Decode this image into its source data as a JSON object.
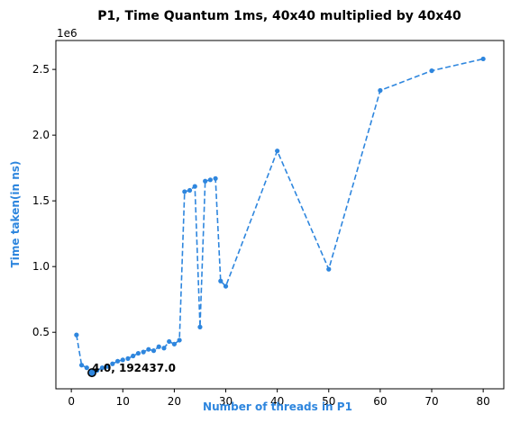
{
  "chart_data": {
    "type": "line",
    "title": "P1, Time Quantum 1ms, 40x40 multiplied by 40x40",
    "xlabel": "Number of threads in P1",
    "ylabel": "Time taken(in ns)",
    "y_offset_label": "1e6",
    "xlim": [
      -3.0,
      84.0
    ],
    "ylim": [
      0.07,
      2.72
    ],
    "x_ticks": [
      0,
      10,
      20,
      30,
      40,
      50,
      60,
      70,
      80
    ],
    "y_ticks": [
      0.5,
      1.0,
      1.5,
      2.0,
      2.5
    ],
    "x_tick_labels": [
      "0",
      "10",
      "20",
      "30",
      "40",
      "50",
      "60",
      "70",
      "80"
    ],
    "y_tick_labels": [
      "0.5",
      "1.0",
      "1.5",
      "2.0",
      "2.5"
    ],
    "grid": false,
    "line_style": "dashed",
    "colors": {
      "series": "#2e86de",
      "label": "#2e86de",
      "highlight_edge": "#000000"
    },
    "series": [
      {
        "x": [
          1,
          2,
          3,
          4,
          5,
          6,
          7,
          8,
          9,
          10,
          11,
          12,
          13,
          14,
          15,
          16,
          17,
          18,
          19,
          20,
          21,
          22,
          23,
          24,
          25,
          26,
          27,
          28,
          29,
          30,
          40,
          50,
          60,
          70,
          80
        ],
        "y": [
          0.48,
          0.25,
          0.23,
          0.192437,
          0.21,
          0.23,
          0.24,
          0.26,
          0.28,
          0.29,
          0.3,
          0.32,
          0.34,
          0.35,
          0.37,
          0.36,
          0.39,
          0.38,
          0.43,
          0.41,
          0.44,
          1.57,
          1.58,
          1.61,
          0.54,
          1.65,
          1.66,
          1.67,
          0.89,
          0.85,
          1.88,
          0.98,
          2.34,
          2.49,
          2.58
        ]
      }
    ],
    "highlight": {
      "x": 4,
      "y": 0.192437,
      "label": "4.0, 192437.0"
    }
  }
}
